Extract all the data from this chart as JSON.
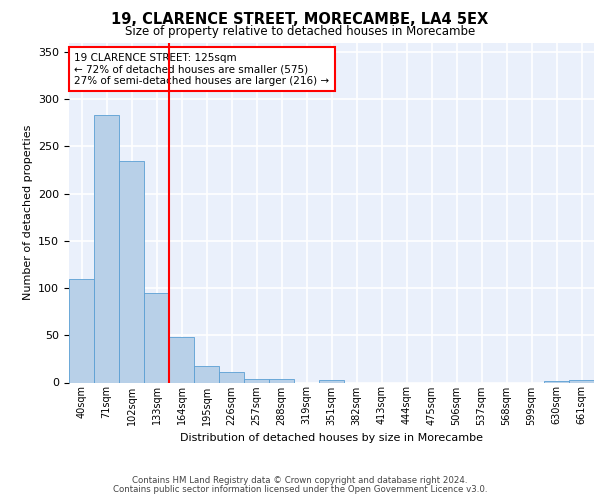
{
  "title_line1": "19, CLARENCE STREET, MORECAMBE, LA4 5EX",
  "title_line2": "Size of property relative to detached houses in Morecambe",
  "xlabel": "Distribution of detached houses by size in Morecambe",
  "ylabel": "Number of detached properties",
  "categories": [
    "40sqm",
    "71sqm",
    "102sqm",
    "133sqm",
    "164sqm",
    "195sqm",
    "226sqm",
    "257sqm",
    "288sqm",
    "319sqm",
    "351sqm",
    "382sqm",
    "413sqm",
    "444sqm",
    "475sqm",
    "506sqm",
    "537sqm",
    "568sqm",
    "599sqm",
    "630sqm",
    "661sqm"
  ],
  "values": [
    110,
    283,
    234,
    95,
    48,
    17,
    11,
    4,
    4,
    0,
    3,
    0,
    0,
    0,
    0,
    0,
    0,
    0,
    0,
    2,
    3
  ],
  "bar_color": "#b8d0e8",
  "bar_edge_color": "#5a9fd4",
  "red_line_x": 3.5,
  "annotation_text": "19 CLARENCE STREET: 125sqm\n← 72% of detached houses are smaller (575)\n27% of semi-detached houses are larger (216) →",
  "ylim": [
    0,
    360
  ],
  "yticks": [
    0,
    50,
    100,
    150,
    200,
    250,
    300,
    350
  ],
  "background_color": "#eaf0fb",
  "grid_color": "#ffffff",
  "footer_line1": "Contains HM Land Registry data © Crown copyright and database right 2024.",
  "footer_line2": "Contains public sector information licensed under the Open Government Licence v3.0."
}
